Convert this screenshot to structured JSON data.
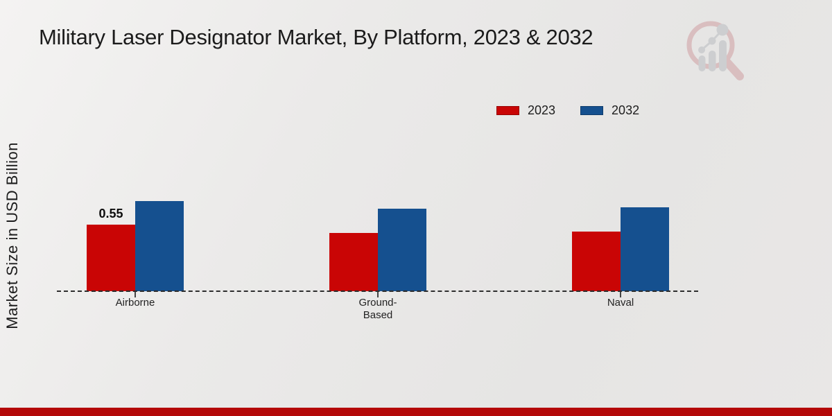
{
  "chart_data": {
    "type": "bar",
    "title": "Military Laser Designator Market, By Platform, 2023 & 2032",
    "ylabel": "Market Size in USD Billion",
    "xlabel": "",
    "categories": [
      "Airborne",
      "Ground-\nBased",
      "Naval"
    ],
    "series": [
      {
        "name": "2023",
        "color": "#c90505",
        "values": [
          0.55,
          0.48,
          0.49
        ],
        "data_labels": [
          "0.55",
          "",
          ""
        ]
      },
      {
        "name": "2032",
        "color": "#15508f",
        "values": [
          0.74,
          0.68,
          0.69
        ],
        "data_labels": [
          "",
          "",
          ""
        ]
      }
    ],
    "ylim": [
      0,
      0.9
    ],
    "grid": false,
    "axis_style": "dashed-baseline-only",
    "legend_position": "top-right",
    "baseline_color": "#2d2d2d"
  },
  "logo": {
    "name": "market-research-magnifier-logo"
  },
  "footer": {
    "bar_color": "#b40808"
  }
}
